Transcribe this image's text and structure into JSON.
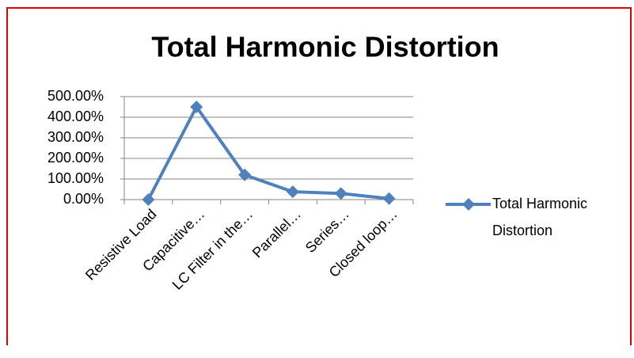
{
  "chart_data": {
    "type": "line",
    "title": "Total Harmonic Distortion",
    "categories": [
      "Resistive Load",
      "Capacitive…",
      "LC Filter in the…",
      "Parallel…",
      "Series…",
      "Closed loop…"
    ],
    "series": [
      {
        "name": "Total Harmonic Distortion",
        "color": "#4f81bd",
        "values": [
          0,
          450,
          120,
          38,
          30,
          5
        ]
      }
    ],
    "ylim": [
      0,
      500
    ],
    "yticks": [
      {
        "value": 0,
        "label": "0.00%"
      },
      {
        "value": 100,
        "label": "100.00%"
      },
      {
        "value": 200,
        "label": "200.00%"
      },
      {
        "value": 300,
        "label": "300.00%"
      },
      {
        "value": 400,
        "label": "400.00%"
      },
      {
        "value": 500,
        "label": "500.00%"
      }
    ],
    "grid": true,
    "legend": "right"
  }
}
